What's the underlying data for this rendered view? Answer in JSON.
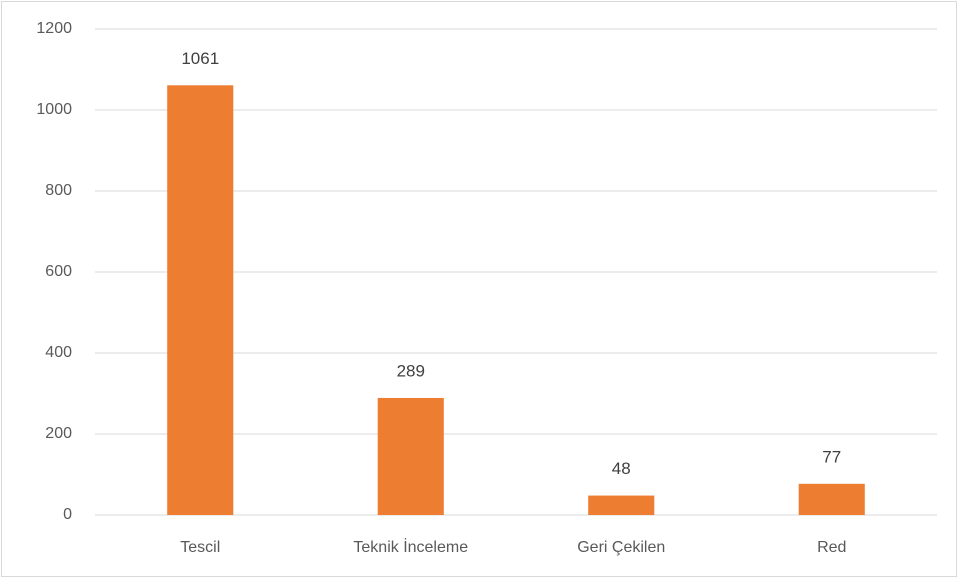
{
  "chart_data": {
    "type": "bar",
    "categories": [
      "Tescil",
      "Teknik İnceleme",
      "Geri Çekilen",
      "Red"
    ],
    "values": [
      1061,
      289,
      48,
      77
    ],
    "color": "#ed7d31",
    "ylim": [
      0,
      1200
    ],
    "yticks": [
      0,
      200,
      400,
      600,
      800,
      1000,
      1200
    ],
    "grid": true
  }
}
